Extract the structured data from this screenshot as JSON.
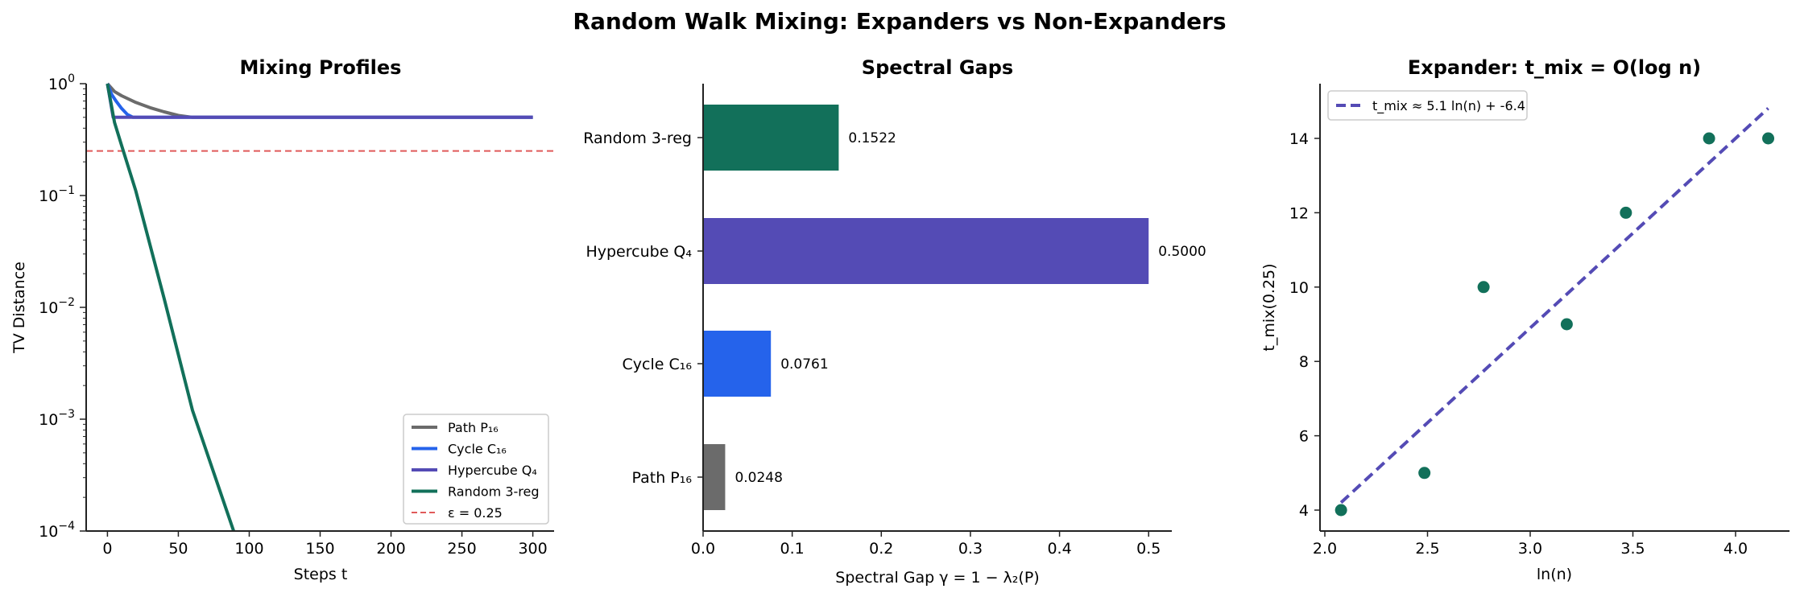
{
  "figure": {
    "title": "Random Walk Mixing: Expanders vs Non-Expanders"
  },
  "colors": {
    "path": "#6b6b6b",
    "cycle": "#2563eb",
    "hypercube": "#544bb5",
    "random": "#12705a",
    "epsilon": "#e05a5a",
    "axis": "#222222"
  },
  "chart_data": [
    {
      "type": "line",
      "title": "Mixing Profiles",
      "xlabel": "Steps t",
      "ylabel": "TV Distance",
      "yscale": "log",
      "xlim": [
        -15,
        315
      ],
      "ylim": [
        0.0001,
        1
      ],
      "xticks": [
        0,
        50,
        100,
        150,
        200,
        250,
        300
      ],
      "yticks": [
        "10^0",
        "10^-1",
        "10^-2",
        "10^-3",
        "10^-4"
      ],
      "grid": false,
      "legend_position": "lower right",
      "series": [
        {
          "name": "Path P₁₆",
          "color": "#6b6b6b",
          "x": [
            0,
            5,
            10,
            20,
            30,
            40,
            50,
            60,
            300
          ],
          "y": [
            1.0,
            0.85,
            0.78,
            0.68,
            0.61,
            0.56,
            0.52,
            0.5,
            0.5
          ]
        },
        {
          "name": "Cycle C₁₆",
          "color": "#2563eb",
          "x": [
            0,
            3,
            6,
            10,
            14,
            18,
            300
          ],
          "y": [
            1.0,
            0.8,
            0.7,
            0.6,
            0.53,
            0.5,
            0.5
          ]
        },
        {
          "name": "Hypercube Q₄",
          "color": "#544bb5",
          "x": [
            0,
            4,
            300
          ],
          "y": [
            1.0,
            0.5,
            0.5
          ]
        },
        {
          "name": "Random 3-reg",
          "color": "#12705a",
          "x": [
            0,
            5,
            10,
            20,
            40,
            60,
            89
          ],
          "y": [
            1.0,
            0.45,
            0.28,
            0.11,
            0.012,
            0.0012,
            0.0001
          ]
        }
      ],
      "hlines": [
        {
          "name": "ε = 0.25",
          "y": 0.25,
          "color": "#e05a5a",
          "style": "dashed"
        }
      ],
      "legend": [
        "Path P₁₆",
        "Cycle C₁₆",
        "Hypercube Q₄",
        "Random 3-reg",
        "ε = 0.25"
      ]
    },
    {
      "type": "bar",
      "orientation": "horizontal",
      "title": "Spectral Gaps",
      "xlabel": "Spectral Gap γ = 1 − λ₂(P)",
      "ylabel": "",
      "categories": [
        "Path P₁₆",
        "Cycle C₁₆",
        "Hypercube Q₄",
        "Random 3-reg"
      ],
      "values": [
        0.0248,
        0.0761,
        0.5,
        0.1522
      ],
      "value_labels": [
        "0.0248",
        "0.0761",
        "0.5000",
        "0.1522"
      ],
      "colors": [
        "#6b6b6b",
        "#2563eb",
        "#544bb5",
        "#12705a"
      ],
      "xlim": [
        0,
        0.526
      ],
      "xticks": [
        "0.0",
        "0.1",
        "0.2",
        "0.3",
        "0.4",
        "0.5"
      ],
      "grid": false
    },
    {
      "type": "scatter",
      "title": "Expander: t_mix = O(log n)",
      "xlabel": "ln(n)",
      "ylabel": "t_mix(0.25)",
      "xlim": [
        1.98,
        4.27
      ],
      "ylim": [
        3.44,
        15.47
      ],
      "xticks": [
        "2.0",
        "2.5",
        "3.0",
        "3.5",
        "4.0"
      ],
      "yticks": [
        "4",
        "6",
        "8",
        "10",
        "12",
        "14"
      ],
      "x": [
        2.079,
        2.485,
        2.773,
        3.178,
        3.466,
        3.871,
        4.159
      ],
      "y": [
        4,
        5,
        10,
        9,
        12,
        14,
        14
      ],
      "point_color": "#12705a",
      "fit": {
        "label": "t_mix ≈ 5.1 ln(n) + -6.4",
        "slope": 5.1,
        "intercept": -6.4,
        "x_range": [
          2.079,
          4.159
        ],
        "color": "#544bb5",
        "style": "dashed"
      },
      "legend_position": "upper left",
      "grid": false
    }
  ]
}
